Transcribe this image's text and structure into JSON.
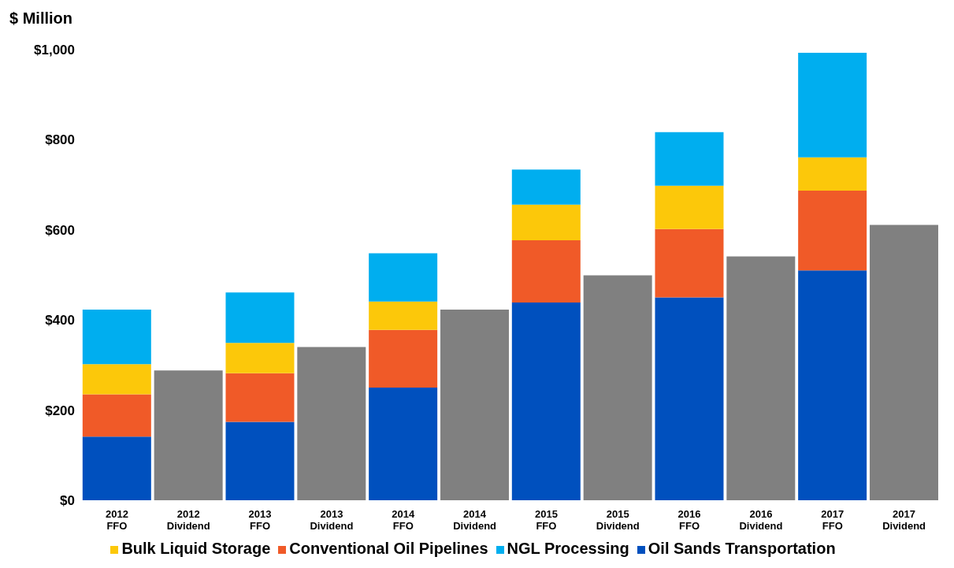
{
  "chart_data": {
    "type": "bar",
    "stacked": true,
    "ylabel": "$ Million",
    "categories": [
      "2012 FFO",
      "2012 Dividend",
      "2013 FFO",
      "2013 Dividend",
      "2014 FFO",
      "2014 Dividend",
      "2015 FFO",
      "2015 Dividend",
      "2016 FFO",
      "2016 Dividend",
      "2017 FFO",
      "2017 Dividend"
    ],
    "series": [
      {
        "name": "Oil Sands Transportation",
        "color": "#0050be",
        "values": [
          141,
          null,
          174,
          null,
          250,
          null,
          439,
          null,
          450,
          null,
          510,
          null
        ]
      },
      {
        "name": "Conventional Oil Pipelines",
        "color": "#f05a28",
        "values": [
          94,
          null,
          108,
          null,
          128,
          null,
          138,
          null,
          152,
          null,
          177,
          null
        ]
      },
      {
        "name": "Bulk Liquid Storage",
        "color": "#fcc80a",
        "values": [
          67,
          null,
          67,
          null,
          63,
          null,
          79,
          null,
          96,
          null,
          74,
          null
        ]
      },
      {
        "name": "NGL Processing",
        "color": "#00aeef",
        "values": [
          121,
          null,
          112,
          null,
          107,
          null,
          78,
          null,
          119,
          null,
          232,
          null
        ]
      },
      {
        "color": "#808080",
        "values": [
          null,
          288,
          null,
          340,
          null,
          423,
          null,
          499,
          null,
          541,
          null,
          611
        ]
      }
    ],
    "ylim": [
      0,
      1000
    ],
    "yticks": [
      {
        "value": 0,
        "label": "$0"
      },
      {
        "value": 200,
        "label": "$200"
      },
      {
        "value": 400,
        "label": "$400"
      },
      {
        "value": 600,
        "label": "$600"
      },
      {
        "value": 800,
        "label": "$800"
      },
      {
        "value": 1000,
        "label": "$1,000"
      }
    ],
    "grid": false,
    "legend": "bottom"
  }
}
